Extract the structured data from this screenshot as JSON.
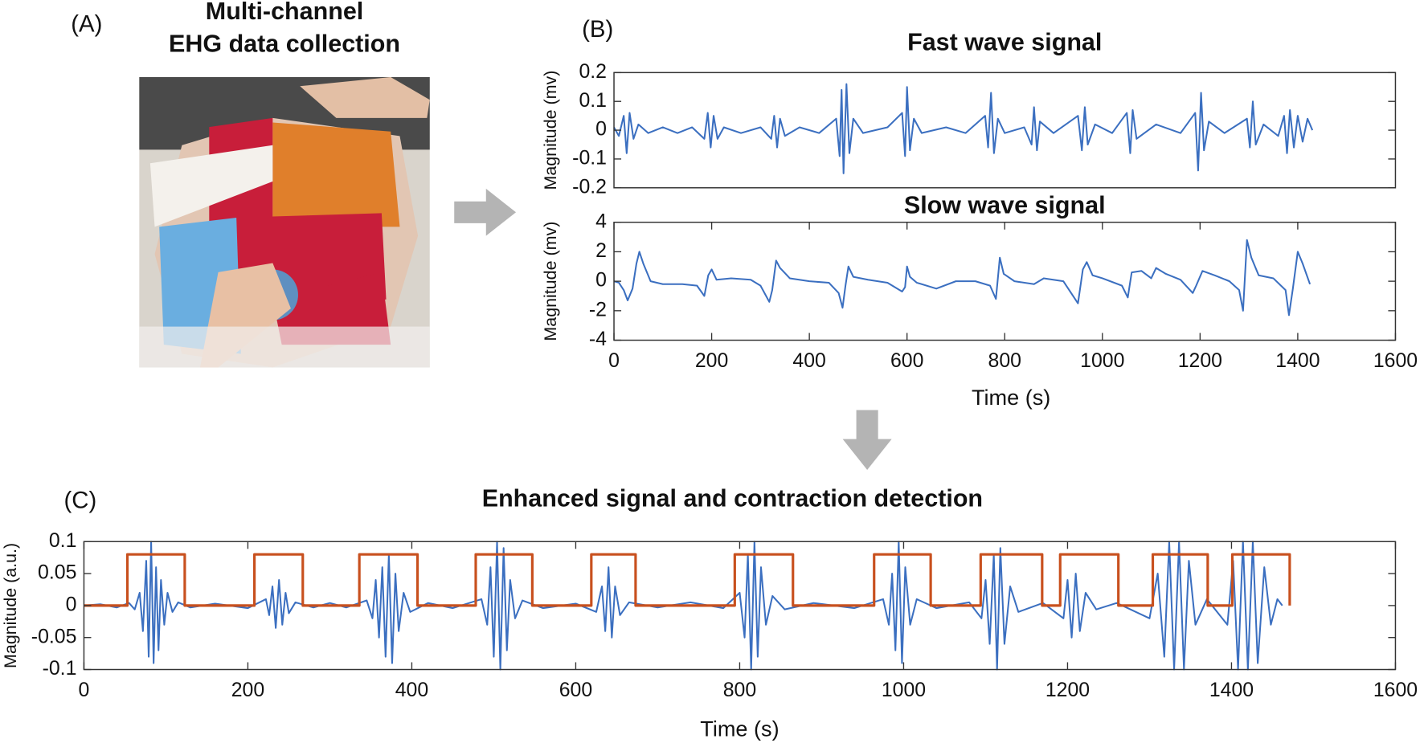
{
  "panel_labels": [
    "(A)",
    "(B)",
    "(C)"
  ],
  "photo_title": [
    "Multi-channel",
    "EHG data collection"
  ],
  "chart_data": [
    {
      "type": "line",
      "title": "Fast wave signal",
      "ylabel": "Magnitude (mv)",
      "xlim": [
        0,
        1600
      ],
      "ylim": [
        -0.2,
        0.2
      ],
      "yticks": [
        -0.2,
        -0.1,
        0,
        0.1,
        0.2
      ],
      "series": [
        {
          "color": "#3b6fc0",
          "x": [
            0,
            10,
            20,
            26,
            32,
            40,
            50,
            70,
            100,
            130,
            160,
            185,
            192,
            198,
            204,
            212,
            225,
            260,
            300,
            322,
            328,
            334,
            340,
            350,
            380,
            420,
            455,
            462,
            466,
            470,
            476,
            482,
            490,
            510,
            560,
            590,
            596,
            600,
            606,
            614,
            630,
            680,
            720,
            760,
            766,
            772,
            778,
            786,
            800,
            840,
            855,
            860,
            866,
            872,
            900,
            950,
            958,
            964,
            970,
            985,
            1020,
            1050,
            1057,
            1062,
            1070,
            1110,
            1160,
            1190,
            1196,
            1202,
            1208,
            1218,
            1250,
            1296,
            1302,
            1308,
            1314,
            1330,
            1360,
            1372,
            1378,
            1384,
            1392,
            1400,
            1410,
            1420,
            1430
          ],
          "values": [
            0.01,
            -0.02,
            0.05,
            -0.08,
            0.06,
            -0.03,
            0.02,
            -0.01,
            0.01,
            -0.01,
            0.01,
            -0.03,
            0.06,
            -0.06,
            0.05,
            -0.03,
            0.01,
            -0.01,
            0.01,
            -0.03,
            0.05,
            -0.06,
            0.04,
            -0.02,
            0.01,
            -0.01,
            0.04,
            -0.09,
            0.14,
            -0.15,
            0.16,
            -0.08,
            0.04,
            -0.01,
            0.01,
            0.06,
            -0.09,
            0.15,
            -0.07,
            0.04,
            -0.01,
            0.01,
            -0.01,
            0.05,
            -0.06,
            0.13,
            -0.08,
            0.04,
            -0.01,
            0.01,
            -0.05,
            0.08,
            -0.07,
            0.03,
            -0.01,
            0.05,
            -0.07,
            0.08,
            -0.05,
            0.02,
            -0.01,
            0.06,
            -0.08,
            0.07,
            -0.03,
            0.02,
            -0.01,
            0.06,
            -0.14,
            0.13,
            -0.07,
            0.03,
            -0.01,
            0.04,
            -0.06,
            0.1,
            -0.05,
            0.02,
            -0.02,
            0.05,
            -0.08,
            0.07,
            -0.06,
            0.05,
            -0.04,
            0.04,
            0
          ]
        }
      ]
    },
    {
      "type": "line",
      "title": "Slow wave signal",
      "ylabel": "Magnitude (mv)",
      "xlabel": "Time (s)",
      "xlim": [
        0,
        1600
      ],
      "xticks": [
        0,
        200,
        400,
        600,
        800,
        1000,
        1200,
        1400,
        1600
      ],
      "ylim": [
        -4,
        4
      ],
      "yticks": [
        -4,
        -2,
        0,
        2,
        4
      ],
      "series": [
        {
          "color": "#3b6fc0",
          "x": [
            0,
            10,
            20,
            28,
            38,
            46,
            52,
            60,
            75,
            100,
            140,
            170,
            185,
            193,
            200,
            210,
            240,
            280,
            300,
            318,
            324,
            332,
            340,
            360,
            400,
            440,
            460,
            468,
            474,
            480,
            490,
            520,
            560,
            590,
            596,
            600,
            606,
            620,
            660,
            700,
            740,
            770,
            782,
            790,
            798,
            820,
            860,
            880,
            920,
            950,
            960,
            968,
            980,
            1000,
            1040,
            1052,
            1060,
            1080,
            1100,
            1110,
            1130,
            1160,
            1185,
            1192,
            1205,
            1230,
            1260,
            1280,
            1288,
            1296,
            1305,
            1320,
            1350,
            1375,
            1382,
            1390,
            1400,
            1410,
            1425
          ],
          "values": [
            0,
            -0.1,
            -0.6,
            -1.3,
            -0.5,
            1.2,
            2,
            1.2,
            0,
            -0.2,
            -0.2,
            -0.3,
            -1,
            0.4,
            0.8,
            0.1,
            0.2,
            0.1,
            -0.3,
            -1.4,
            -0.6,
            1.4,
            0.9,
            0.2,
            0,
            -0.1,
            -0.8,
            -1.8,
            -0.3,
            1,
            0.3,
            0.1,
            -0.1,
            -0.7,
            -0.4,
            1,
            0.3,
            -0.1,
            -0.5,
            0,
            0,
            -0.3,
            -1.2,
            1.6,
            0.5,
            0,
            -0.2,
            0.2,
            0,
            -1.5,
            0.8,
            1.3,
            0.4,
            0.2,
            -0.3,
            -1.1,
            0.6,
            0.7,
            0.2,
            0.9,
            0.5,
            0.1,
            -0.8,
            -0.3,
            0.7,
            0.4,
            0,
            -0.6,
            -2,
            2.8,
            1.6,
            0.4,
            0.2,
            -0.6,
            -2.3,
            -0.5,
            2,
            1.2,
            -0.2
          ]
        }
      ]
    },
    {
      "type": "line",
      "title": "Enhanced signal and contraction detection",
      "ylabel": "Magnitude (a.u.)",
      "xlabel": "Time (s)",
      "xlim": [
        0,
        1600
      ],
      "xticks": [
        0,
        200,
        400,
        600,
        800,
        1000,
        1200,
        1400,
        1600
      ],
      "ylim": [
        -0.1,
        0.1
      ],
      "yticks": [
        -0.1,
        -0.05,
        0,
        0.05,
        0.1
      ],
      "series": [
        {
          "color": "#3b6fc0",
          "x": [
            0,
            20,
            40,
            55,
            62,
            68,
            72,
            76,
            79,
            82,
            85,
            88,
            91,
            94,
            98,
            102,
            108,
            115,
            130,
            160,
            200,
            222,
            226,
            230,
            234,
            238,
            242,
            246,
            250,
            258,
            280,
            300,
            320,
            345,
            352,
            356,
            360,
            364,
            368,
            372,
            376,
            380,
            384,
            390,
            398,
            420,
            450,
            485,
            492,
            496,
            500,
            504,
            508,
            512,
            516,
            520,
            526,
            535,
            560,
            600,
            625,
            632,
            636,
            640,
            644,
            648,
            654,
            665,
            700,
            740,
            780,
            800,
            806,
            810,
            814,
            818,
            822,
            826,
            832,
            840,
            855,
            890,
            940,
            975,
            982,
            986,
            990,
            994,
            998,
            1002,
            1008,
            1016,
            1040,
            1080,
            1095,
            1100,
            1105,
            1110,
            1114,
            1118,
            1123,
            1130,
            1140,
            1170,
            1195,
            1200,
            1205,
            1210,
            1215,
            1222,
            1235,
            1260,
            1300,
            1310,
            1318,
            1324,
            1330,
            1336,
            1342,
            1348,
            1356,
            1370,
            1395,
            1402,
            1408,
            1414,
            1420,
            1426,
            1432,
            1440,
            1448,
            1456,
            1462
          ],
          "values": [
            0,
            0.002,
            -0.003,
            0.004,
            -0.006,
            0.02,
            -0.04,
            0.07,
            -0.08,
            0.1,
            -0.09,
            0.06,
            -0.07,
            0.04,
            -0.03,
            0.02,
            -0.01,
            0.005,
            -0.003,
            0.003,
            -0.004,
            0.01,
            -0.015,
            0.03,
            -0.035,
            0.04,
            -0.03,
            0.02,
            -0.012,
            0.005,
            -0.003,
            0.004,
            -0.003,
            0.008,
            -0.02,
            0.04,
            -0.05,
            0.06,
            -0.08,
            0.08,
            -0.09,
            0.05,
            -0.04,
            0.02,
            -0.01,
            0.004,
            -0.004,
            0.01,
            -0.03,
            0.06,
            -0.08,
            0.1,
            -0.1,
            0.09,
            -0.07,
            0.04,
            -0.02,
            0.008,
            -0.004,
            0.003,
            -0.01,
            0.03,
            -0.04,
            0.06,
            -0.05,
            0.03,
            -0.015,
            0.005,
            -0.003,
            0.005,
            -0.004,
            0.02,
            -0.05,
            0.08,
            -0.1,
            0.1,
            -0.08,
            0.06,
            -0.03,
            0.015,
            -0.006,
            0.004,
            -0.004,
            0.01,
            -0.03,
            0.05,
            -0.07,
            0.1,
            -0.09,
            0.06,
            -0.03,
            0.01,
            -0.004,
            0.005,
            -0.02,
            0.04,
            -0.06,
            0.08,
            -0.1,
            0.09,
            -0.06,
            0.03,
            -0.01,
            0.004,
            -0.02,
            0.04,
            -0.05,
            0.05,
            -0.04,
            0.02,
            -0.006,
            0.004,
            -0.02,
            0.05,
            -0.08,
            0.1,
            -0.1,
            0.1,
            -0.1,
            0.07,
            -0.03,
            0.01,
            -0.03,
            0.07,
            -0.1,
            0.1,
            -0.1,
            0.1,
            -0.09,
            0.06,
            -0.03,
            0.01,
            0
          ]
        },
        {
          "color": "#c8501e",
          "x": [
            0,
            53,
            53,
            123,
            123,
            208,
            208,
            267,
            267,
            336,
            336,
            407,
            407,
            478,
            478,
            547,
            547,
            619,
            619,
            673,
            673,
            794,
            794,
            865,
            865,
            964,
            964,
            1033,
            1033,
            1094,
            1094,
            1169,
            1169,
            1191,
            1191,
            1262,
            1262,
            1304,
            1304,
            1371,
            1371,
            1401,
            1401,
            1471,
            1471
          ],
          "values": [
            0,
            0,
            0.08,
            0.08,
            0,
            0,
            0.08,
            0.08,
            0,
            0,
            0.08,
            0.08,
            0,
            0,
            0.08,
            0.08,
            0,
            0,
            0.08,
            0.08,
            0,
            0,
            0.08,
            0.08,
            0,
            0,
            0.08,
            0.08,
            0,
            0,
            0.08,
            0.08,
            0,
            0,
            0.08,
            0.08,
            0,
            0,
            0.08,
            0.08,
            0,
            0,
            0.08,
            0.08,
            0
          ]
        }
      ]
    }
  ]
}
